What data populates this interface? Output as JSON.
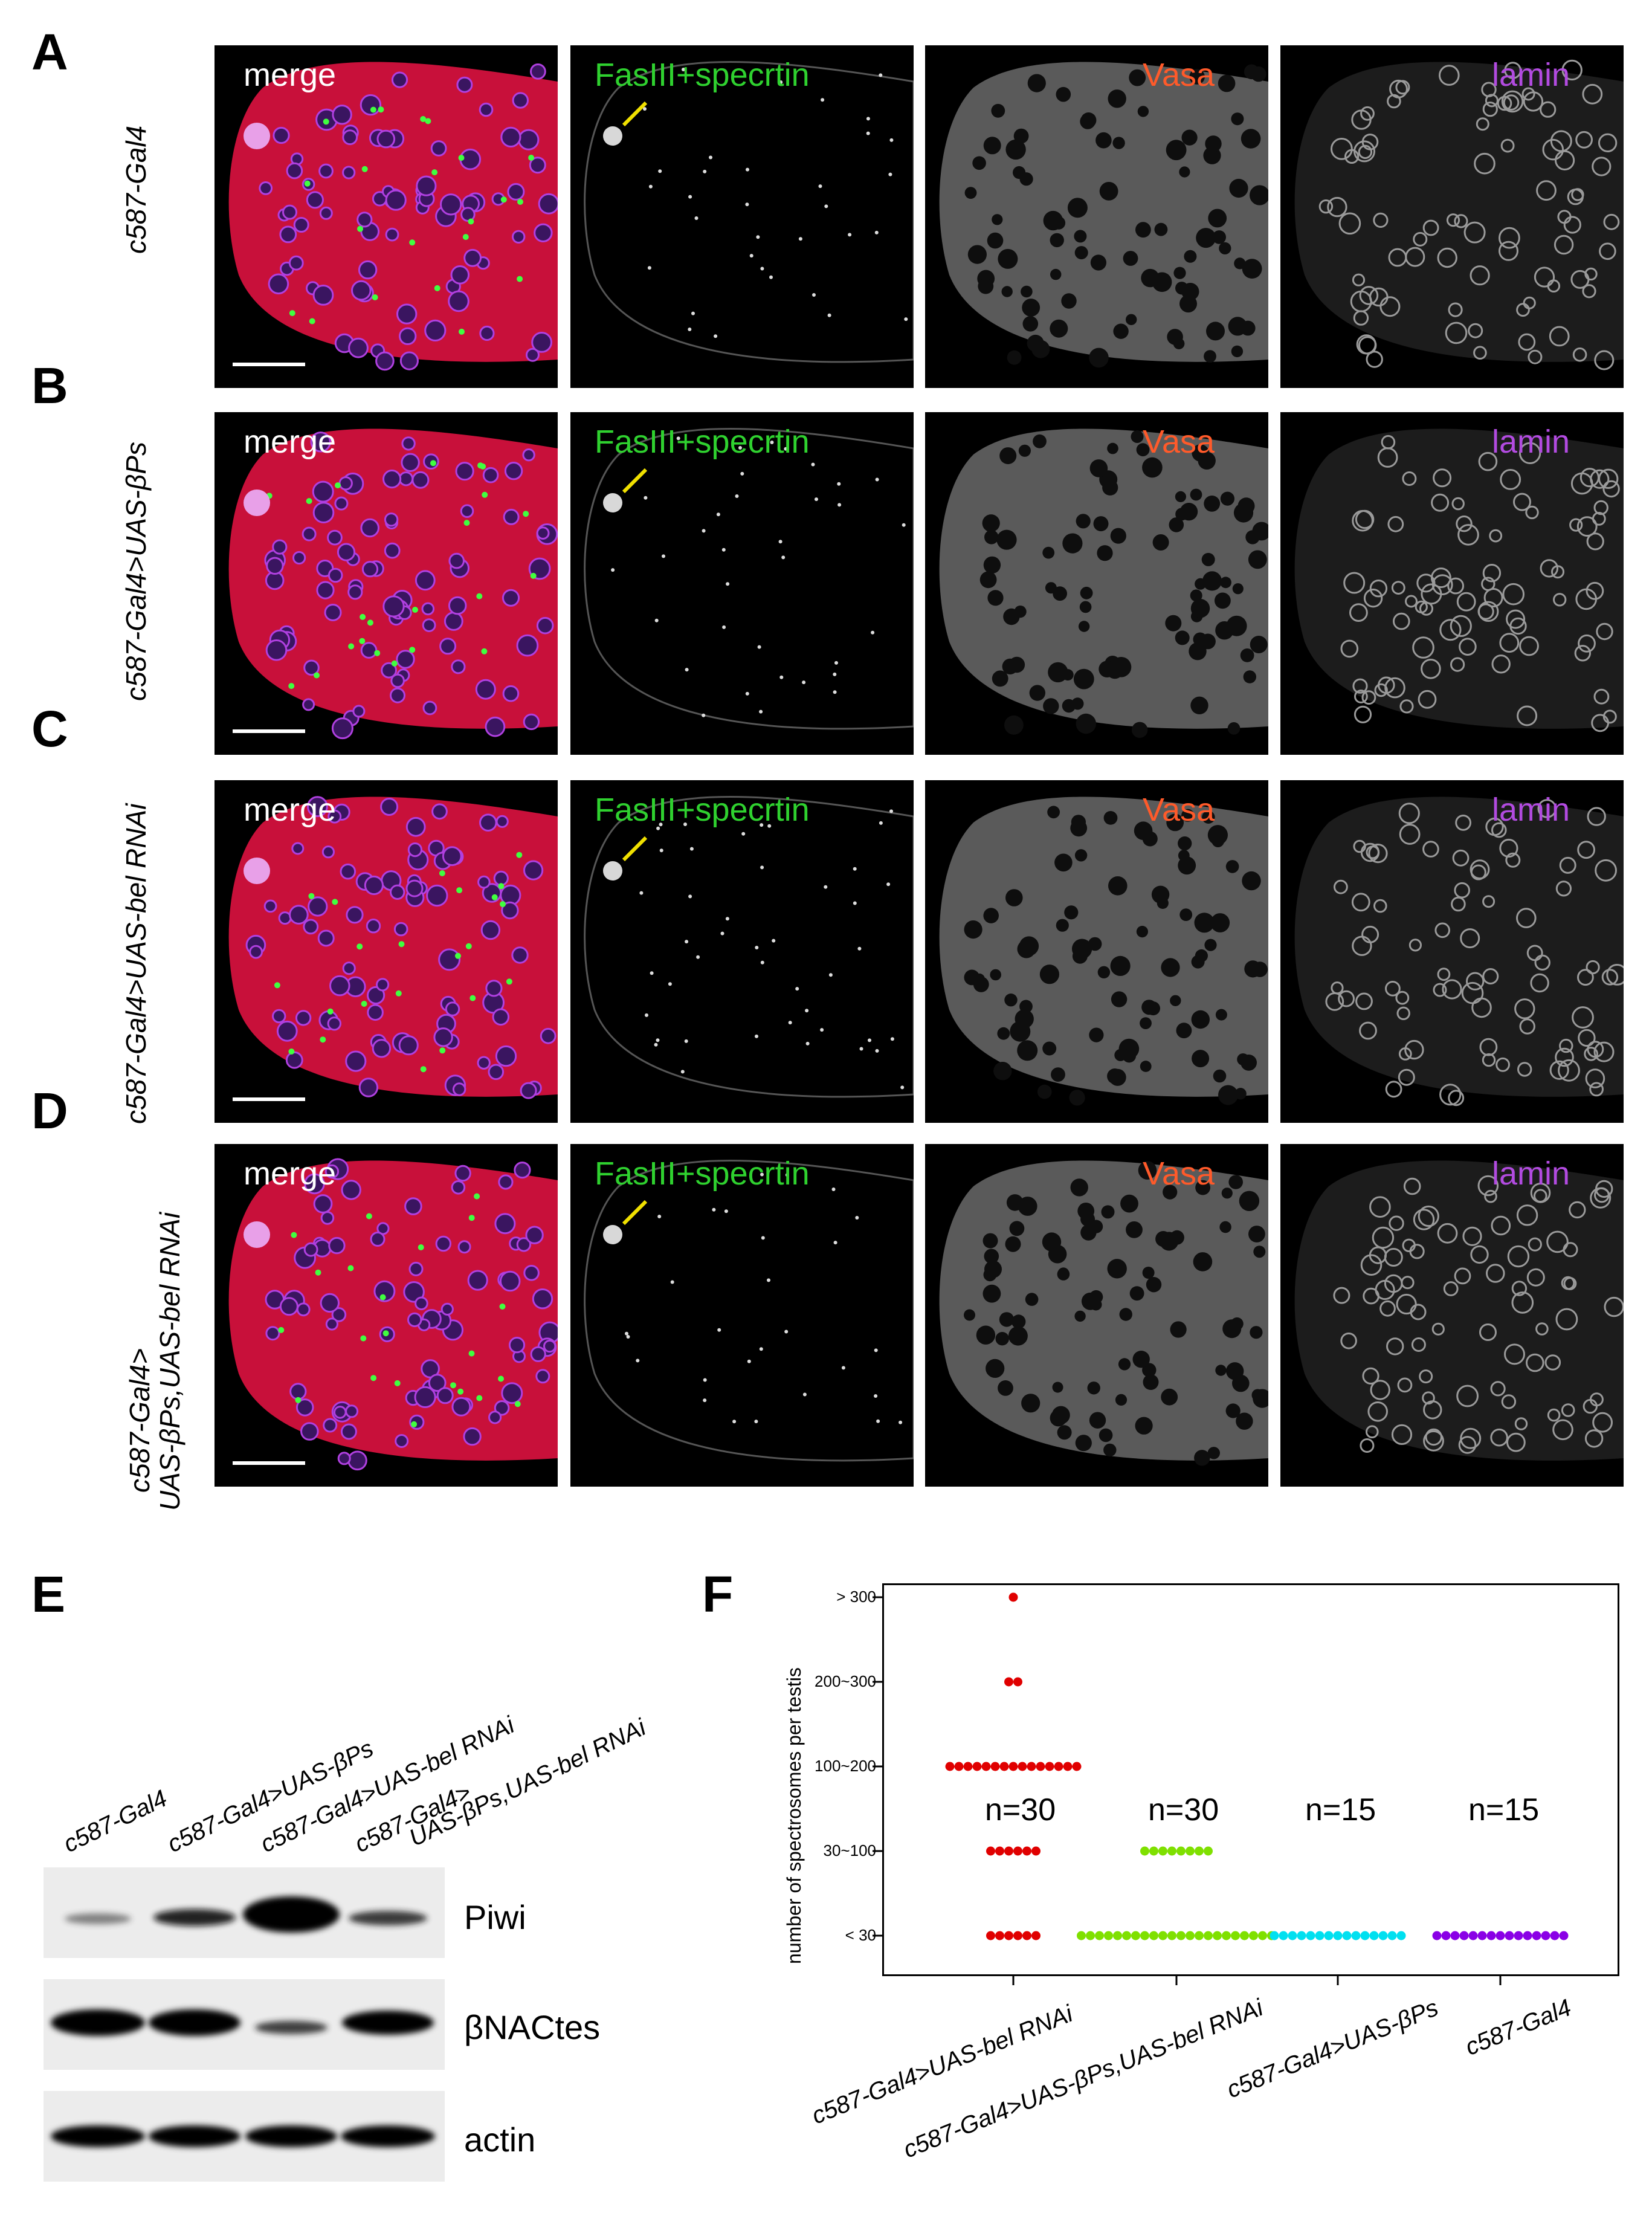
{
  "panel_letters": [
    "A",
    "B",
    "C",
    "D",
    "E",
    "F"
  ],
  "row_labels": [
    "c587-Gal4",
    "c587-Gal4>UAS-βPs",
    "c587-Gal4>UAS-bel RNAi",
    "c587-Gal4>",
    "UAS-βPs,UAS-bel RNAi"
  ],
  "column_titles": [
    "merge",
    "FasIII+specrtin",
    "Vasa",
    "lamin"
  ],
  "colors": {
    "green_title": "#2fd12f",
    "red_title": "#ff5a2a",
    "purple_title": "#b24be0",
    "white_title": "#ffffff"
  },
  "blot": {
    "lanes": [
      "c587-Gal4",
      "c587-Gal4>UAS-βPs",
      "c587-Gal4>UAS-bel RNAi",
      "c587-Gal4>",
      "UAS-βPs,UAS-bel RNAi"
    ],
    "bands": [
      "Piwi",
      "βNACtes",
      "actin"
    ]
  },
  "chart_data": {
    "type": "scatter",
    "ylabel": "number of spectrosomes per testis",
    "yticks": [
      "> 300",
      "200~300",
      "100~200",
      "30~100",
      "< 30"
    ],
    "categories": [
      "c587-Gal4>UAS-bel RNAi",
      "c587-Gal4>UAS-βPs,UAS-bel RNAi",
      "c587-Gal4>UAS-βPs",
      "c587-Gal4"
    ],
    "n_labels": [
      "n=30",
      "n=30",
      "n=15",
      "n=15"
    ],
    "series_colors": [
      "#e00000",
      "#7fe000",
      "#00e0f0",
      "#8a00e6"
    ],
    "counts": [
      [
        1,
        2,
        15,
        6,
        6
      ],
      [
        0,
        0,
        0,
        8,
        22
      ],
      [
        0,
        0,
        0,
        0,
        15
      ],
      [
        0,
        0,
        0,
        0,
        15
      ]
    ]
  }
}
